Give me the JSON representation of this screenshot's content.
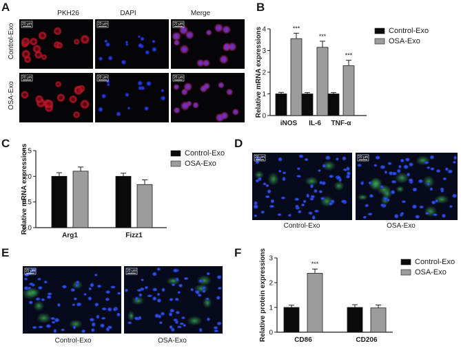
{
  "panels": {
    "A": {
      "letter": "A",
      "columns": [
        "PKH26",
        "DAPI",
        "Merge"
      ],
      "rows": [
        "Control-Exo",
        "OSA-Exo"
      ],
      "scale_label": "20 μm"
    },
    "B": {
      "letter": "B"
    },
    "C": {
      "letter": "C"
    },
    "D": {
      "letter": "D",
      "captions": [
        "Control-Exo",
        "OSA-Exo"
      ],
      "scale_label": "20 μm"
    },
    "E": {
      "letter": "E",
      "captions": [
        "Control-Exo",
        "OSA-Exo"
      ],
      "scale_label": "20 μm"
    },
    "F": {
      "letter": "F"
    }
  },
  "colors": {
    "control": "#0a0a0a",
    "osa": "#9c9c9c",
    "axis": "#1a1a1a"
  },
  "chart_data": [
    {
      "id": "B",
      "type": "bar",
      "categories": [
        "iNOS",
        "IL-6",
        "TNF-α"
      ],
      "series": [
        {
          "name": "Control-Exo",
          "values": [
            1.0,
            1.0,
            1.0
          ],
          "errors": [
            0.07,
            0.06,
            0.06
          ]
        },
        {
          "name": "OSA-Exo",
          "values": [
            3.55,
            3.15,
            2.3
          ],
          "errors": [
            0.25,
            0.28,
            0.25
          ]
        }
      ],
      "significance": [
        "***",
        "***",
        "***"
      ],
      "ylabel": "Relative mRNA expressions",
      "ylim": [
        0,
        4
      ],
      "yticks": [
        0,
        1,
        2,
        3,
        4
      ],
      "legend": "top-right"
    },
    {
      "id": "C",
      "type": "bar",
      "categories": [
        "Arg1",
        "Fizz1"
      ],
      "series": [
        {
          "name": "Control-Exo",
          "values": [
            1.0,
            1.0
          ],
          "errors": [
            0.07,
            0.06
          ]
        },
        {
          "name": "OSA-Exo",
          "values": [
            1.1,
            0.84
          ],
          "errors": [
            0.08,
            0.09
          ]
        }
      ],
      "ylabel": "Relative mRNA expressions",
      "ylim": [
        0,
        1.5
      ],
      "yticks": [
        0.0,
        0.5,
        1.0,
        1.5
      ],
      "legend": "top-right"
    },
    {
      "id": "F",
      "type": "bar",
      "categories": [
        "CD86",
        "CD206"
      ],
      "series": [
        {
          "name": "Control-Exo",
          "values": [
            1.0,
            1.0
          ],
          "errors": [
            0.09,
            0.11
          ]
        },
        {
          "name": "OSA-Exo",
          "values": [
            2.38,
            0.98
          ],
          "errors": [
            0.17,
            0.12
          ]
        }
      ],
      "significance": [
        "***",
        ""
      ],
      "ylabel": "Relative protein expressions",
      "ylim": [
        0,
        3
      ],
      "yticks": [
        0,
        1,
        2,
        3
      ],
      "legend": "top-right"
    }
  ]
}
